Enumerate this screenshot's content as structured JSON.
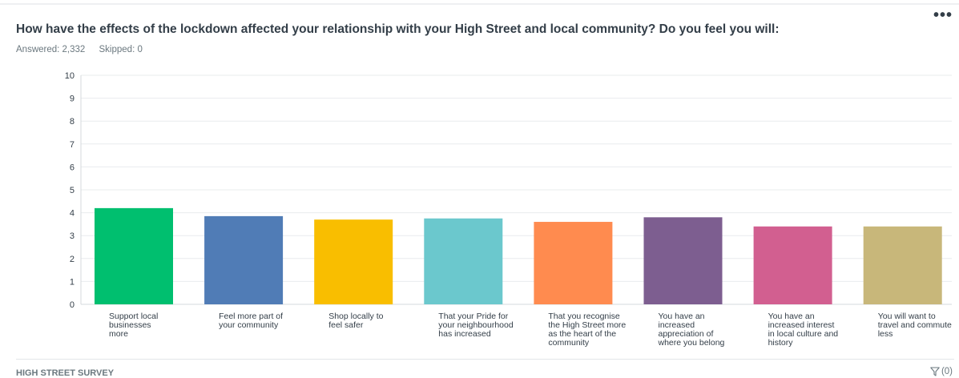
{
  "header": {
    "question": "How have the effects of the lockdown affected your relationship with your High Street and local community? Do you feel you will:",
    "answered": "Answered: 2,332",
    "skipped": "Skipped: 0",
    "menu_glyph": "•••"
  },
  "footer": {
    "survey_title": "HIGH STREET SURVEY",
    "filter_count": "(0)",
    "filter_icon": "filter-icon"
  },
  "chart_data": {
    "type": "bar",
    "ylim": [
      0,
      10
    ],
    "yticks": [
      0,
      1,
      2,
      3,
      4,
      5,
      6,
      7,
      8,
      9,
      10
    ],
    "grid": true,
    "categories": [
      [
        "Support local",
        "businesses",
        "more"
      ],
      [
        "Feel more part of",
        "your community"
      ],
      [
        "Shop locally to",
        "feel safer"
      ],
      [
        "That your Pride for",
        "your neighbourhood",
        "has increased"
      ],
      [
        "That you recognise",
        "the High Street more",
        "as the heart of the",
        "community"
      ],
      [
        "You have an",
        "increased",
        "appreciation of",
        "where you belong"
      ],
      [
        "You have an",
        "increased interest",
        "in local culture and",
        "history"
      ],
      [
        "You will want to",
        "travel and commute",
        "less"
      ]
    ],
    "values": [
      4.2,
      3.85,
      3.7,
      3.75,
      3.6,
      3.8,
      3.4,
      3.4
    ],
    "colors": [
      "#00bf6f",
      "#507cb6",
      "#f9be00",
      "#6bc8cd",
      "#ff8b4f",
      "#7d5e90",
      "#d25f90",
      "#c8b77a"
    ]
  }
}
